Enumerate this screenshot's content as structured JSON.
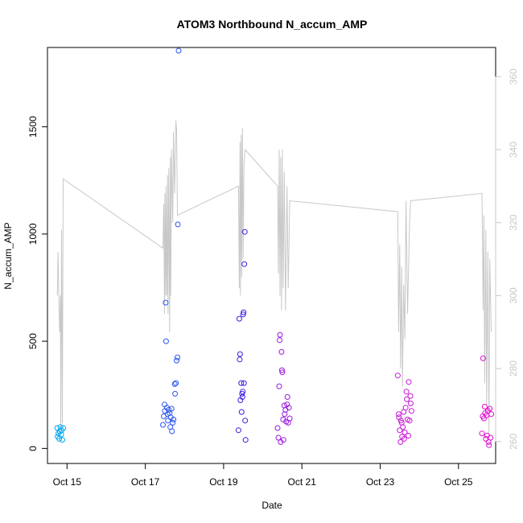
{
  "chart_data": {
    "type": "scatter",
    "title": "ATOM3 Northbound N_accum_AMP",
    "xlabel": "Date",
    "ylabel": "N_accum_AMP",
    "x_axis": {
      "unit": "day of October",
      "range": [
        14.5,
        25.95
      ],
      "ticks": [
        {
          "value": 15,
          "label": "Oct 15"
        },
        {
          "value": 17,
          "label": "Oct 17"
        },
        {
          "value": 19,
          "label": "Oct 19"
        },
        {
          "value": 21,
          "label": "Oct 21"
        },
        {
          "value": 23,
          "label": "Oct 23"
        },
        {
          "value": 25,
          "label": "Oct 25"
        }
      ]
    },
    "y_axis_left": {
      "range": [
        -70,
        1870
      ],
      "ticks": [
        0,
        500,
        1000,
        1500
      ]
    },
    "y_axis_right": {
      "range": [
        254,
        368
      ],
      "ticks": [
        260,
        280,
        300,
        320,
        340,
        360
      ],
      "color": "#c8c8c8"
    },
    "grid": false,
    "legend": "none",
    "marker": "open-circle",
    "series": [
      {
        "color": "#00a8f0",
        "points": [
          [
            14.75,
            95
          ],
          [
            14.76,
            55
          ],
          [
            14.78,
            70
          ],
          [
            14.8,
            45
          ],
          [
            14.81,
            80
          ],
          [
            14.83,
            100
          ],
          [
            14.85,
            65
          ],
          [
            14.86,
            85
          ],
          [
            14.88,
            40
          ],
          [
            14.9,
            95
          ]
        ]
      },
      {
        "color": "#2a55f0",
        "points": [
          [
            17.45,
            110
          ],
          [
            17.47,
            150
          ],
          [
            17.49,
            205
          ],
          [
            17.5,
            175
          ],
          [
            17.52,
            680
          ],
          [
            17.53,
            500
          ],
          [
            17.55,
            190
          ],
          [
            17.57,
            160
          ],
          [
            17.58,
            130
          ],
          [
            17.6,
            180
          ],
          [
            17.62,
            165
          ],
          [
            17.64,
            100
          ],
          [
            17.65,
            145
          ],
          [
            17.67,
            185
          ],
          [
            17.68,
            80
          ],
          [
            17.7,
            120
          ],
          [
            17.72,
            135
          ],
          [
            17.75,
            300
          ],
          [
            17.76,
            255
          ],
          [
            17.78,
            305
          ],
          [
            17.8,
            410
          ],
          [
            17.82,
            425
          ],
          [
            17.83,
            1045
          ],
          [
            17.85,
            1855
          ]
        ]
      },
      {
        "color": "#3a1ee0",
        "points": [
          [
            19.38,
            85
          ],
          [
            19.4,
            605
          ],
          [
            19.41,
            415
          ],
          [
            19.42,
            440
          ],
          [
            19.43,
            225
          ],
          [
            19.45,
            305
          ],
          [
            19.46,
            170
          ],
          [
            19.47,
            255
          ],
          [
            19.48,
            240
          ],
          [
            19.49,
            265
          ],
          [
            19.5,
            625
          ],
          [
            19.51,
            635
          ],
          [
            19.52,
            305
          ],
          [
            19.53,
            860
          ],
          [
            19.54,
            1010
          ],
          [
            19.55,
            130
          ],
          [
            19.56,
            40
          ]
        ]
      },
      {
        "color": "#9a18e0",
        "points": [
          [
            20.38,
            95
          ],
          [
            20.4,
            50
          ],
          [
            20.42,
            290
          ],
          [
            20.43,
            505
          ],
          [
            20.44,
            530
          ],
          [
            20.46,
            30
          ],
          [
            20.48,
            450
          ],
          [
            20.49,
            365
          ],
          [
            20.5,
            355
          ],
          [
            20.52,
            135
          ],
          [
            20.53,
            40
          ],
          [
            20.55,
            200
          ],
          [
            20.56,
            160
          ],
          [
            20.58,
            180
          ],
          [
            20.6,
            125
          ],
          [
            20.62,
            205
          ],
          [
            20.63,
            240
          ],
          [
            20.65,
            120
          ],
          [
            20.67,
            190
          ],
          [
            20.69,
            140
          ]
        ]
      },
      {
        "color": "#c814d8",
        "points": [
          [
            23.45,
            340
          ],
          [
            23.47,
            160
          ],
          [
            23.48,
            145
          ],
          [
            23.5,
            85
          ],
          [
            23.52,
            30
          ],
          [
            23.53,
            130
          ],
          [
            23.55,
            120
          ],
          [
            23.56,
            55
          ],
          [
            23.58,
            100
          ],
          [
            23.6,
            170
          ],
          [
            23.61,
            45
          ],
          [
            23.63,
            75
          ],
          [
            23.65,
            190
          ],
          [
            23.67,
            265
          ],
          [
            23.68,
            230
          ],
          [
            23.7,
            135
          ],
          [
            23.72,
            60
          ],
          [
            23.73,
            310
          ],
          [
            23.75,
            130
          ],
          [
            23.77,
            245
          ],
          [
            23.78,
            210
          ],
          [
            23.8,
            175
          ]
        ]
      },
      {
        "color": "#e00cd0",
        "points": [
          [
            25.6,
            70
          ],
          [
            25.62,
            150
          ],
          [
            25.63,
            420
          ],
          [
            25.65,
            140
          ],
          [
            25.67,
            195
          ],
          [
            25.68,
            165
          ],
          [
            25.7,
            45
          ],
          [
            25.72,
            155
          ],
          [
            25.73,
            60
          ],
          [
            25.75,
            175
          ],
          [
            25.77,
            30
          ],
          [
            25.78,
            15
          ],
          [
            25.8,
            185
          ],
          [
            25.82,
            50
          ],
          [
            25.84,
            160
          ]
        ]
      }
    ],
    "secondary_line": {
      "color": "#c8c8c8",
      "axis": "right",
      "points": [
        [
          14.75,
          300
        ],
        [
          14.77,
          312
        ],
        [
          14.79,
          300
        ],
        [
          14.81,
          290
        ],
        [
          14.83,
          300
        ],
        [
          14.84,
          262
        ],
        [
          14.86,
          318
        ],
        [
          14.88,
          265
        ],
        [
          14.9,
          332
        ],
        [
          17.45,
          313
        ],
        [
          17.47,
          325
        ],
        [
          17.49,
          295
        ],
        [
          17.5,
          328
        ],
        [
          17.52,
          300
        ],
        [
          17.53,
          330
        ],
        [
          17.55,
          300
        ],
        [
          17.57,
          333
        ],
        [
          17.58,
          295
        ],
        [
          17.6,
          335
        ],
        [
          17.62,
          290
        ],
        [
          17.64,
          338
        ],
        [
          17.65,
          300
        ],
        [
          17.67,
          340
        ],
        [
          17.7,
          320
        ],
        [
          17.72,
          345
        ],
        [
          17.75,
          328
        ],
        [
          17.78,
          348
        ],
        [
          17.8,
          345
        ],
        [
          17.82,
          322
        ],
        [
          19.38,
          330
        ],
        [
          19.4,
          302
        ],
        [
          19.42,
          342
        ],
        [
          19.43,
          300
        ],
        [
          19.45,
          344
        ],
        [
          19.46,
          305
        ],
        [
          19.48,
          346
        ],
        [
          19.5,
          310
        ],
        [
          19.52,
          336
        ],
        [
          19.55,
          340
        ],
        [
          20.38,
          330
        ],
        [
          20.4,
          306
        ],
        [
          20.42,
          340
        ],
        [
          20.44,
          300
        ],
        [
          20.46,
          338
        ],
        [
          20.48,
          296
        ],
        [
          20.5,
          340
        ],
        [
          20.52,
          302
        ],
        [
          20.55,
          334
        ],
        [
          20.58,
          296
        ],
        [
          20.62,
          330
        ],
        [
          20.65,
          302
        ],
        [
          20.69,
          326
        ],
        [
          23.45,
          323
        ],
        [
          23.47,
          290
        ],
        [
          23.5,
          314
        ],
        [
          23.52,
          280
        ],
        [
          23.55,
          308
        ],
        [
          23.57,
          275
        ],
        [
          23.6,
          303
        ],
        [
          23.63,
          288
        ],
        [
          23.66,
          326
        ],
        [
          23.7,
          295
        ],
        [
          23.75,
          320
        ],
        [
          23.78,
          326
        ],
        [
          25.6,
          328
        ],
        [
          25.62,
          310
        ],
        [
          25.63,
          296
        ],
        [
          25.65,
          322
        ],
        [
          25.67,
          276
        ],
        [
          25.7,
          318
        ],
        [
          25.72,
          270
        ],
        [
          25.75,
          312
        ],
        [
          25.78,
          262
        ],
        [
          25.8,
          310
        ],
        [
          25.84,
          290
        ]
      ]
    }
  }
}
